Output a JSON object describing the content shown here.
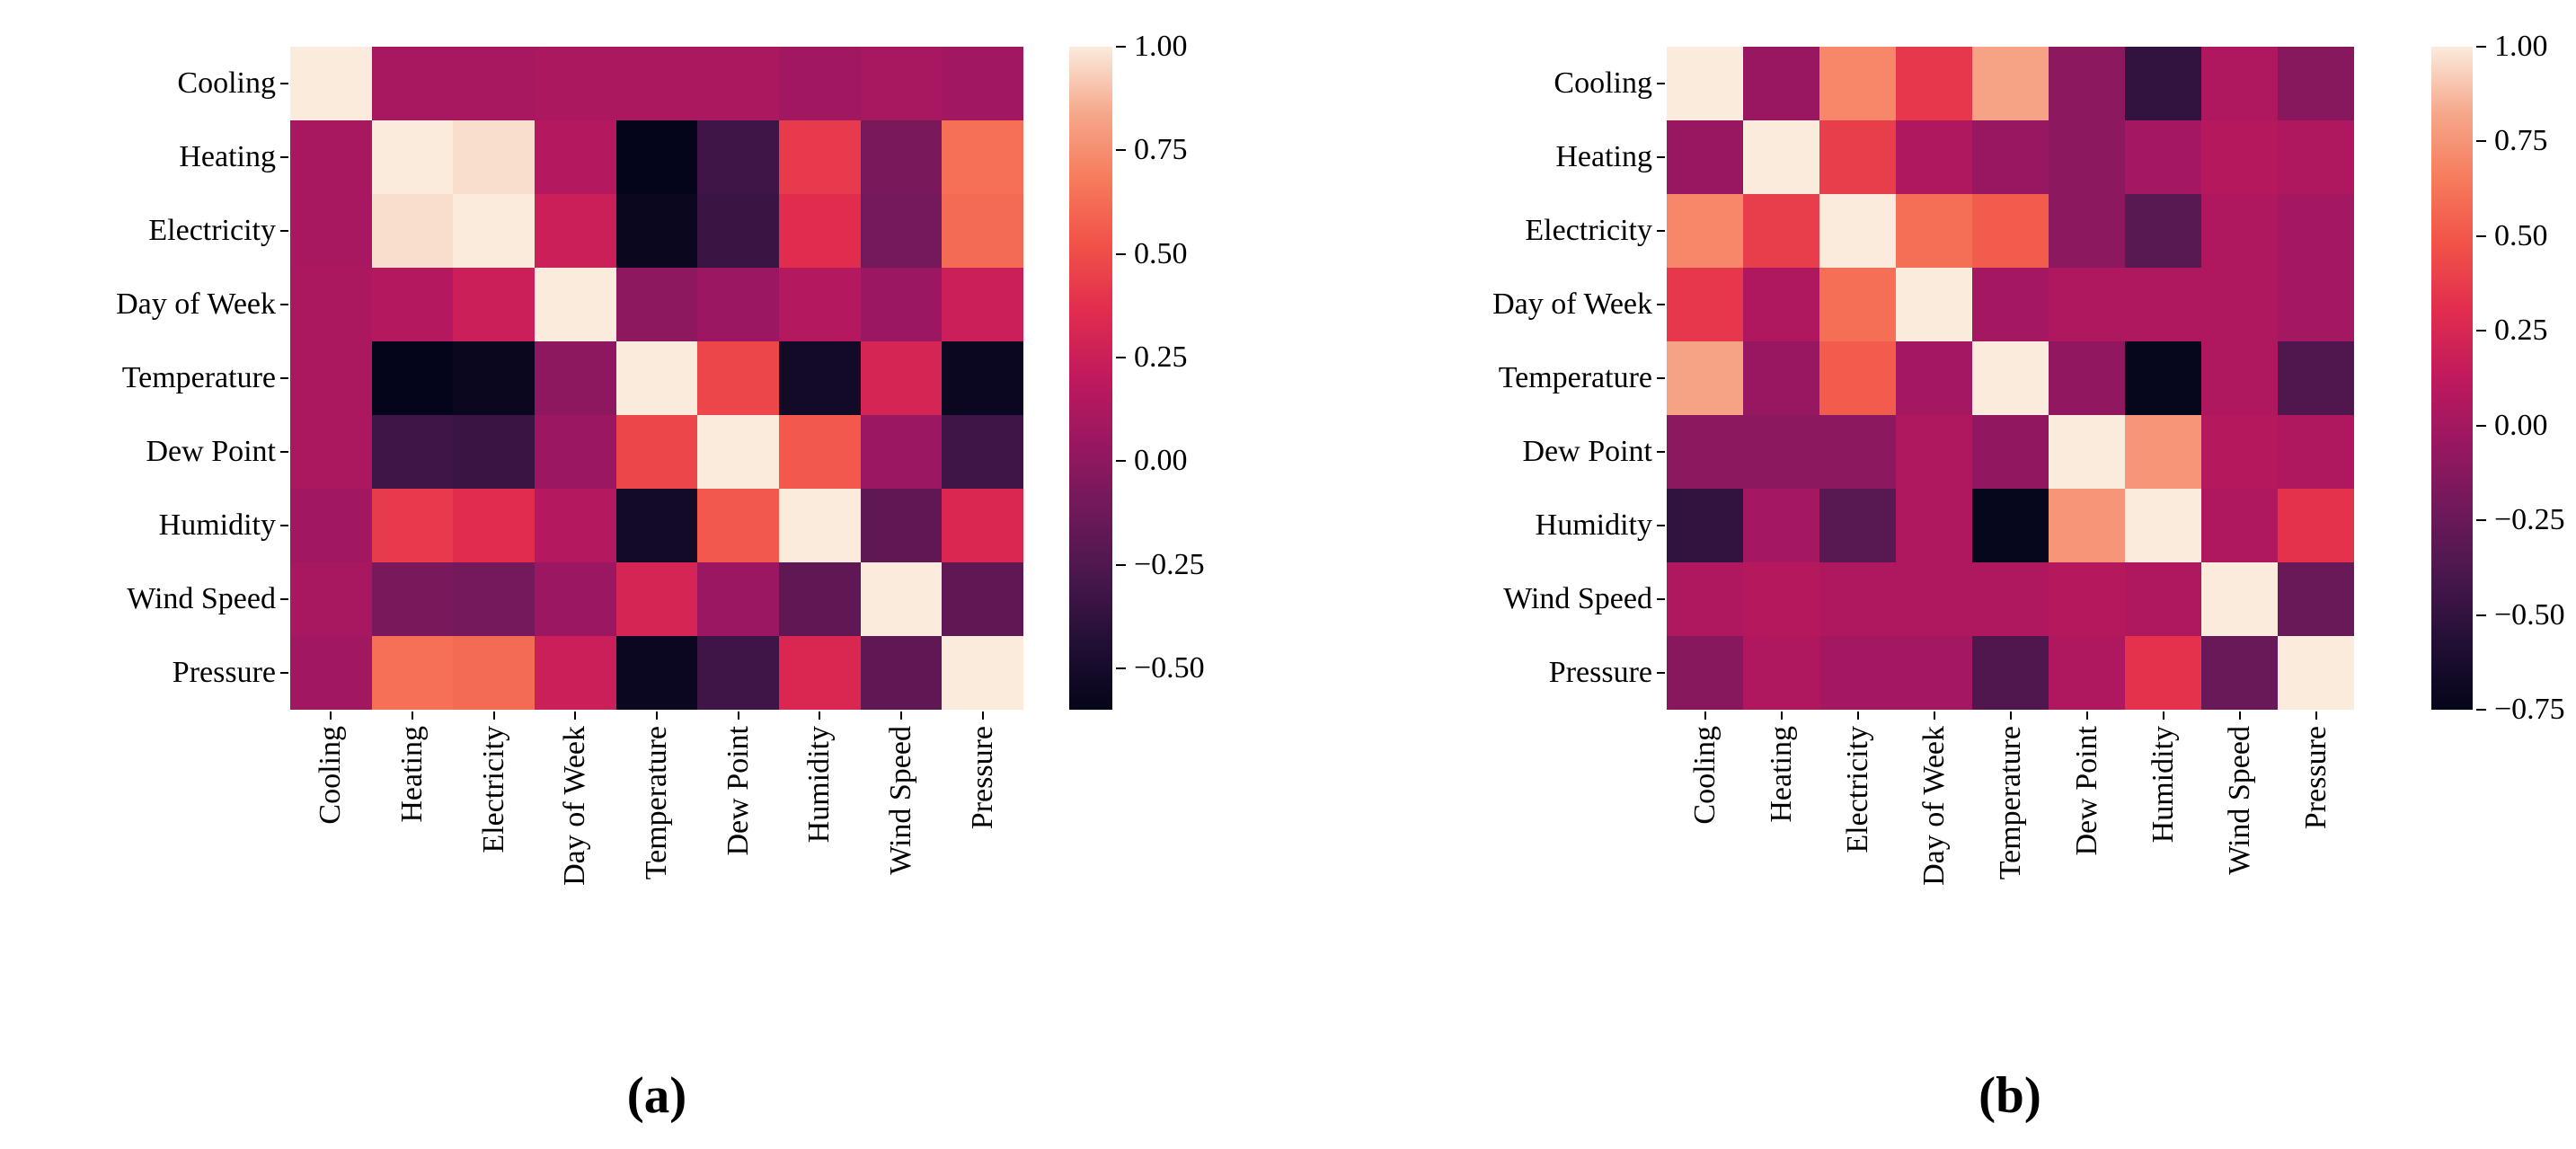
{
  "colors": {
    "background": "#ffffff",
    "text": "#000000",
    "colormap_name": "rocket",
    "colormap_anchors": [
      "#04051a",
      "#220f35",
      "#48174c",
      "#6f195a",
      "#981761",
      "#c0195d",
      "#e12c4e",
      "#f15148",
      "#f67b5c",
      "#f6a88b",
      "#faebdd"
    ]
  },
  "chart_data": [
    {
      "type": "heatmap",
      "panel": "a",
      "caption": "(a)",
      "title": "",
      "categories": [
        "Cooling",
        "Heating",
        "Electricity",
        "Day of Week",
        "Temperature",
        "Dew Point",
        "Humidity",
        "Wind Speed",
        "Pressure"
      ],
      "matrix": [
        [
          1.0,
          0.1,
          0.1,
          0.12,
          0.12,
          0.12,
          0.08,
          0.1,
          0.08
        ],
        [
          0.1,
          1.0,
          0.97,
          0.15,
          -0.6,
          -0.32,
          0.42,
          -0.08,
          0.64
        ],
        [
          0.1,
          0.97,
          1.0,
          0.25,
          -0.57,
          -0.34,
          0.36,
          -0.1,
          0.62
        ],
        [
          0.12,
          0.15,
          0.25,
          1.0,
          0.0,
          0.05,
          0.15,
          0.05,
          0.25
        ],
        [
          0.12,
          -0.6,
          -0.57,
          0.0,
          1.0,
          0.47,
          -0.52,
          0.3,
          -0.56
        ],
        [
          0.12,
          -0.32,
          -0.34,
          0.05,
          0.47,
          1.0,
          0.55,
          0.05,
          -0.32
        ],
        [
          0.08,
          0.42,
          0.36,
          0.15,
          -0.52,
          0.55,
          1.0,
          -0.18,
          0.32
        ],
        [
          0.1,
          -0.08,
          -0.1,
          0.05,
          0.3,
          0.05,
          -0.18,
          1.0,
          -0.18
        ],
        [
          0.08,
          0.64,
          0.62,
          0.25,
          -0.56,
          -0.32,
          0.32,
          -0.18,
          1.0
        ]
      ],
      "vmin": -0.6,
      "vmax": 1.0,
      "colorbar_ticks": [
        "1.00",
        "0.75",
        "0.50",
        "0.25",
        "0.00",
        "−0.25",
        "−0.50"
      ],
      "legend_position": "right-colorbar",
      "grid": false
    },
    {
      "type": "heatmap",
      "panel": "b",
      "caption": "(b)",
      "title": "",
      "categories": [
        "Cooling",
        "Heating",
        "Electricity",
        "Day of Week",
        "Temperature",
        "Dew Point",
        "Humidity",
        "Wind Speed",
        "Pressure"
      ],
      "matrix": [
        [
          1.0,
          -0.05,
          0.7,
          0.35,
          0.8,
          -0.1,
          -0.5,
          0.05,
          -0.12
        ],
        [
          -0.05,
          1.0,
          0.38,
          0.05,
          -0.05,
          -0.1,
          0.0,
          0.08,
          0.05
        ],
        [
          0.7,
          0.38,
          1.0,
          0.6,
          0.52,
          -0.1,
          -0.33,
          0.05,
          0.0
        ],
        [
          0.35,
          0.05,
          0.6,
          1.0,
          0.0,
          0.05,
          0.05,
          0.05,
          0.0
        ],
        [
          0.8,
          -0.05,
          0.52,
          0.0,
          1.0,
          -0.08,
          -0.74,
          0.05,
          -0.37
        ],
        [
          -0.1,
          -0.1,
          -0.1,
          0.05,
          -0.08,
          1.0,
          0.75,
          0.08,
          0.05
        ],
        [
          -0.5,
          0.0,
          -0.33,
          0.05,
          -0.74,
          0.75,
          1.0,
          0.05,
          0.33
        ],
        [
          0.05,
          0.08,
          0.05,
          0.05,
          0.05,
          0.08,
          0.05,
          1.0,
          -0.25
        ],
        [
          -0.12,
          0.05,
          0.0,
          0.0,
          -0.37,
          0.05,
          0.33,
          -0.25,
          1.0
        ]
      ],
      "vmin": -0.75,
      "vmax": 1.0,
      "colorbar_ticks": [
        "1.00",
        "0.75",
        "0.50",
        "0.25",
        "0.00",
        "−0.25",
        "−0.50",
        "−0.75"
      ],
      "legend_position": "right-colorbar",
      "grid": false
    }
  ]
}
